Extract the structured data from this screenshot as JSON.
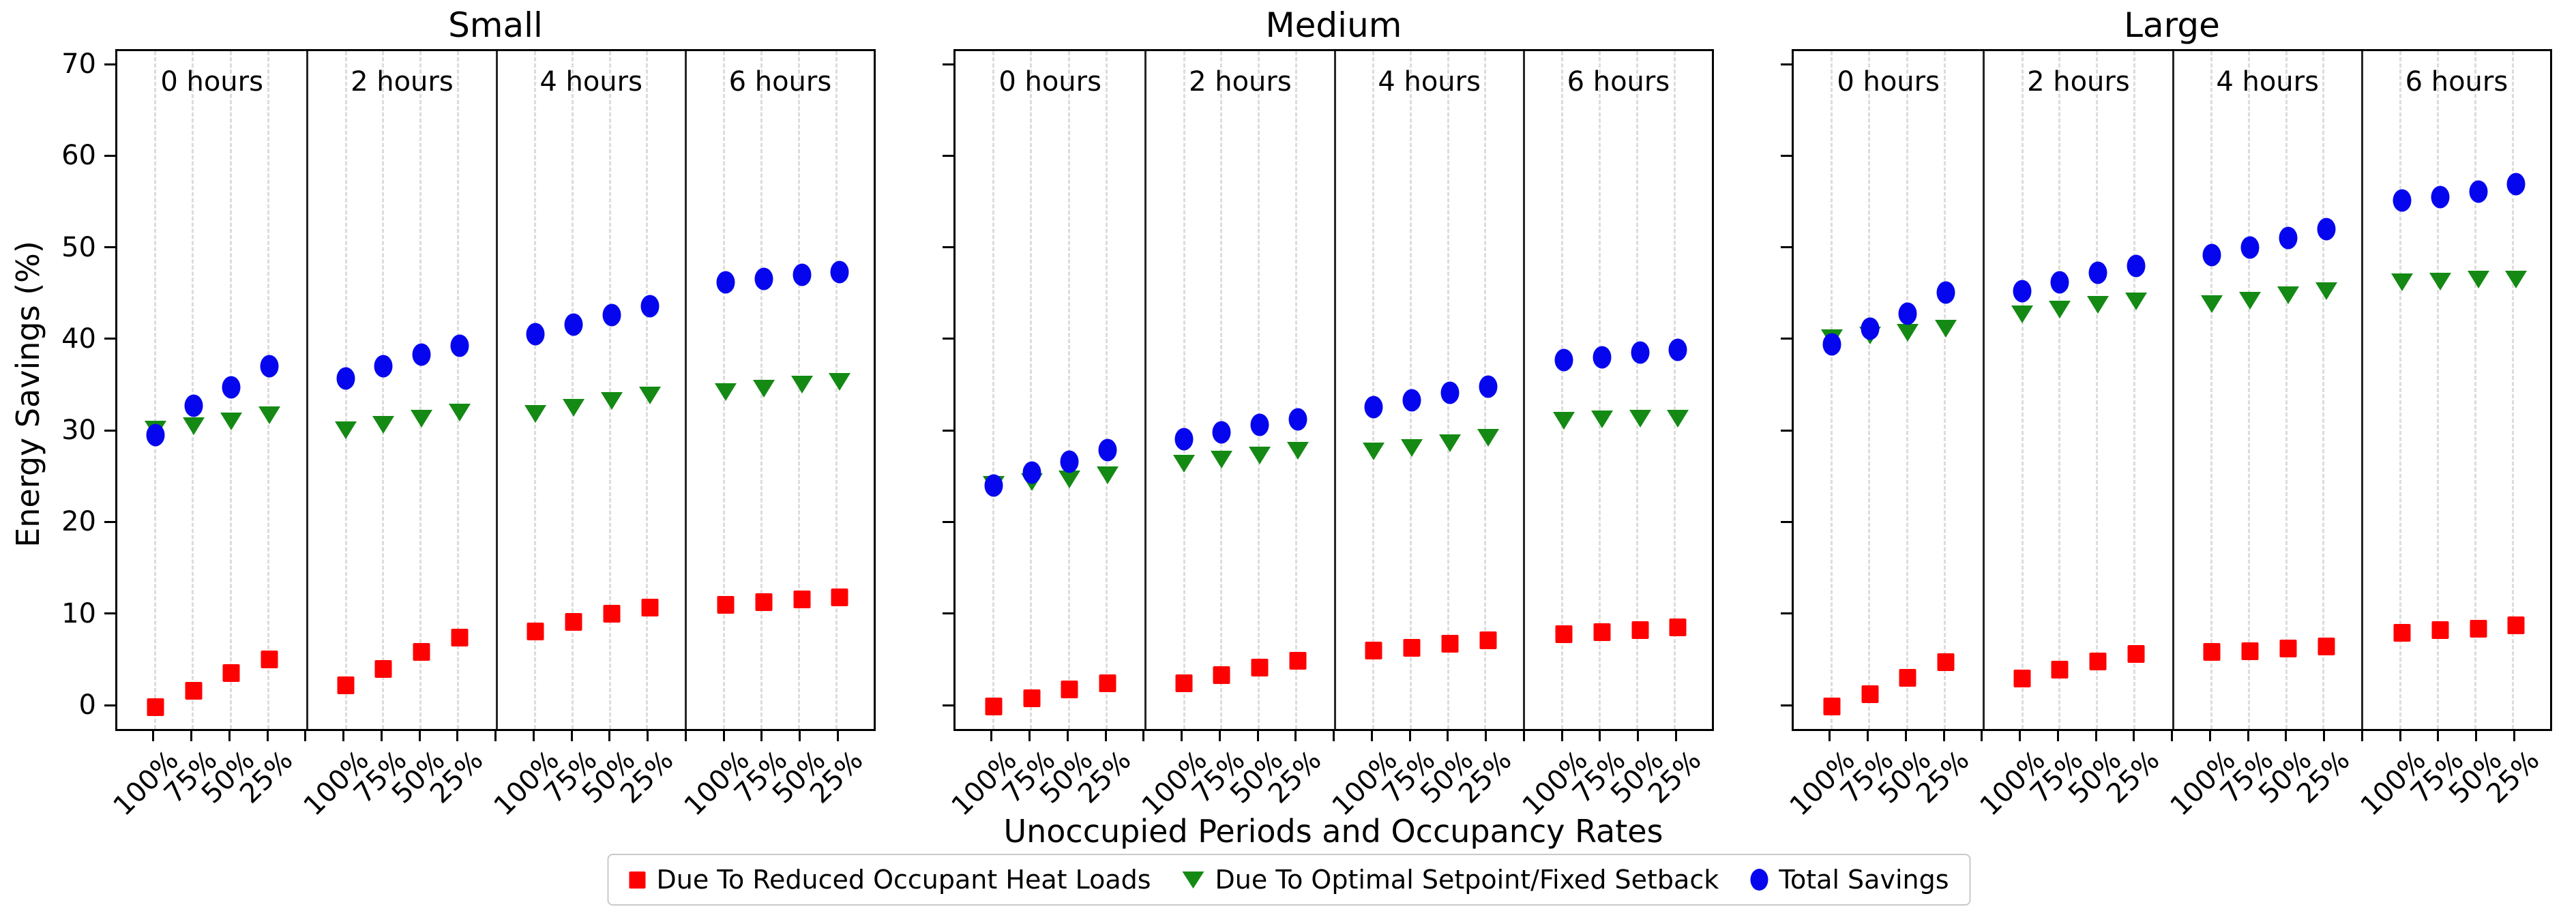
{
  "chart_data": {
    "type": "scatter",
    "title": "",
    "xlabel": "Unoccupied Periods and Occupancy Rates",
    "ylabel": "Energy Savings (%)",
    "ylim": [
      -4.5,
      71.5
    ],
    "yticks": [
      0,
      10,
      20,
      30,
      40,
      50,
      60,
      70
    ],
    "grid": "vertical-dashed",
    "legend_position": "bottom-center",
    "panel_titles": [
      "Small",
      "Medium",
      "Large"
    ],
    "group_labels": [
      "0 hours",
      "2 hours",
      "4 hours",
      "6 hours"
    ],
    "x_tick_labels": [
      "100%",
      "75%",
      "50%",
      "25%"
    ],
    "series": [
      {
        "name": "Due To Reduced Occupant Heat Loads",
        "marker": "square",
        "color": "#ff0000",
        "key": "reduced_occupant_heat_loads"
      },
      {
        "name": "Due To Optimal Setpoint/Fixed Setback",
        "marker": "triangle-down",
        "color": "#148a14",
        "key": "optimal_setpoint_fixed_setback"
      },
      {
        "name": "Total Savings",
        "marker": "circle",
        "color": "#0606ee",
        "key": "total_savings"
      }
    ],
    "panels": [
      {
        "title": "Small",
        "values": {
          "reduced_occupant_heat_loads": [
            [
              0.0,
              1.8,
              3.7,
              5.2
            ],
            [
              2.4,
              4.2,
              6.0,
              7.6
            ],
            [
              8.3,
              9.3,
              10.2,
              10.9
            ],
            [
              11.2,
              11.5,
              11.8,
              12.0
            ]
          ],
          "optimal_setpoint_fixed_setback": [
            [
              30.3,
              30.7,
              31.2,
              31.9
            ],
            [
              30.2,
              30.8,
              31.5,
              32.2
            ],
            [
              32.0,
              32.7,
              33.4,
              34.0
            ],
            [
              34.4,
              34.8,
              35.2,
              35.5
            ]
          ],
          "total_savings": [
            [
              29.7,
              32.9,
              34.9,
              37.2
            ],
            [
              35.9,
              37.2,
              38.5,
              39.5
            ],
            [
              40.7,
              41.8,
              42.8,
              43.8
            ],
            [
              46.4,
              46.8,
              47.2,
              47.5
            ]
          ]
        }
      },
      {
        "title": "Medium",
        "values": {
          "reduced_occupant_heat_loads": [
            [
              0.1,
              1.0,
              1.9,
              2.6
            ],
            [
              2.6,
              3.5,
              4.3,
              5.1
            ],
            [
              6.2,
              6.5,
              6.9,
              7.3
            ],
            [
              8.0,
              8.2,
              8.4,
              8.7
            ]
          ],
          "optimal_setpoint_fixed_setback": [
            [
              24.3,
              24.6,
              24.9,
              25.3
            ],
            [
              26.6,
              27.0,
              27.5,
              28.0
            ],
            [
              27.9,
              28.3,
              28.8,
              29.4
            ],
            [
              31.3,
              31.4,
              31.5,
              31.5
            ]
          ],
          "total_savings": [
            [
              24.2,
              25.6,
              26.8,
              28.1
            ],
            [
              29.3,
              30.0,
              30.8,
              31.4
            ],
            [
              32.8,
              33.5,
              34.3,
              35.0
            ],
            [
              37.9,
              38.2,
              38.7,
              39.0
            ]
          ]
        }
      },
      {
        "title": "Large",
        "values": {
          "reduced_occupant_heat_loads": [
            [
              0.1,
              1.4,
              3.2,
              4.9
            ],
            [
              3.1,
              4.1,
              5.0,
              5.8
            ],
            [
              6.0,
              6.1,
              6.4,
              6.6
            ],
            [
              8.1,
              8.4,
              8.6,
              8.9
            ]
          ],
          "optimal_setpoint_fixed_setback": [
            [
              40.3,
              40.6,
              40.9,
              41.3
            ],
            [
              42.9,
              43.4,
              43.9,
              44.3
            ],
            [
              44.0,
              44.4,
              45.0,
              45.4
            ],
            [
              46.4,
              46.5,
              46.7,
              46.7
            ]
          ],
          "total_savings": [
            [
              39.6,
              41.3,
              43.0,
              45.3
            ],
            [
              45.4,
              46.4,
              47.4,
              48.2
            ],
            [
              49.4,
              50.2,
              51.2,
              52.2
            ],
            [
              55.3,
              55.7,
              56.3,
              57.1
            ]
          ]
        }
      }
    ]
  }
}
